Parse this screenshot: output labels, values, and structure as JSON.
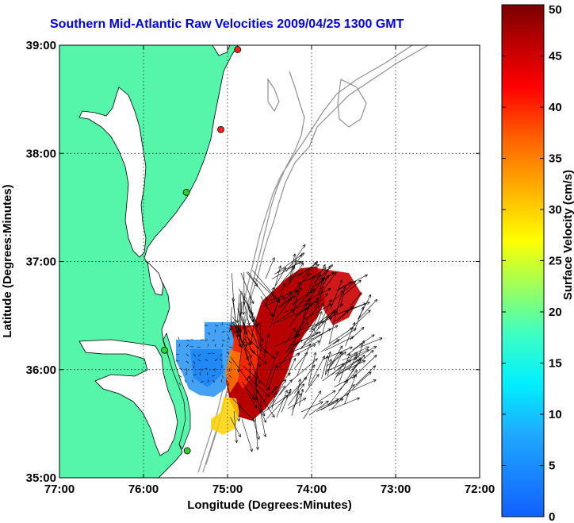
{
  "title": "Southern Mid-Atlantic Raw Velocities 2009/04/25 1300 GMT",
  "map": {
    "xlabel": "Longitude (Degrees:Minutes)",
    "ylabel": "Latitude (Degrees:Minutes)",
    "x_ticks": [
      "77:00",
      "76:00",
      "75:00",
      "74:00",
      "73:00",
      "72:00"
    ],
    "y_ticks": [
      "39:00",
      "38:00",
      "37:00",
      "36:00",
      "35:00"
    ],
    "lon_range": [
      -77,
      -72
    ],
    "lat_range": [
      35,
      39
    ],
    "land_color": "#55f5aa",
    "ocean_color": "#ffffff",
    "stations": [
      {
        "lon": -74.88,
        "lat": 38.96,
        "color": "#ff2020"
      },
      {
        "lon": -75.08,
        "lat": 38.22,
        "color": "#ff2020"
      },
      {
        "lon": -75.49,
        "lat": 37.64,
        "color": "#30d030"
      },
      {
        "lon": -75.75,
        "lat": 36.18,
        "color": "#30d030"
      },
      {
        "lon": -75.48,
        "lat": 35.25,
        "color": "#30d030"
      }
    ]
  },
  "colorbar": {
    "label": "Surface Velocity (cm/s)",
    "ticks": [
      "0",
      "5",
      "10",
      "15",
      "20",
      "25",
      "30",
      "35",
      "40",
      "45",
      "50"
    ],
    "min": 0,
    "max": 50
  }
}
